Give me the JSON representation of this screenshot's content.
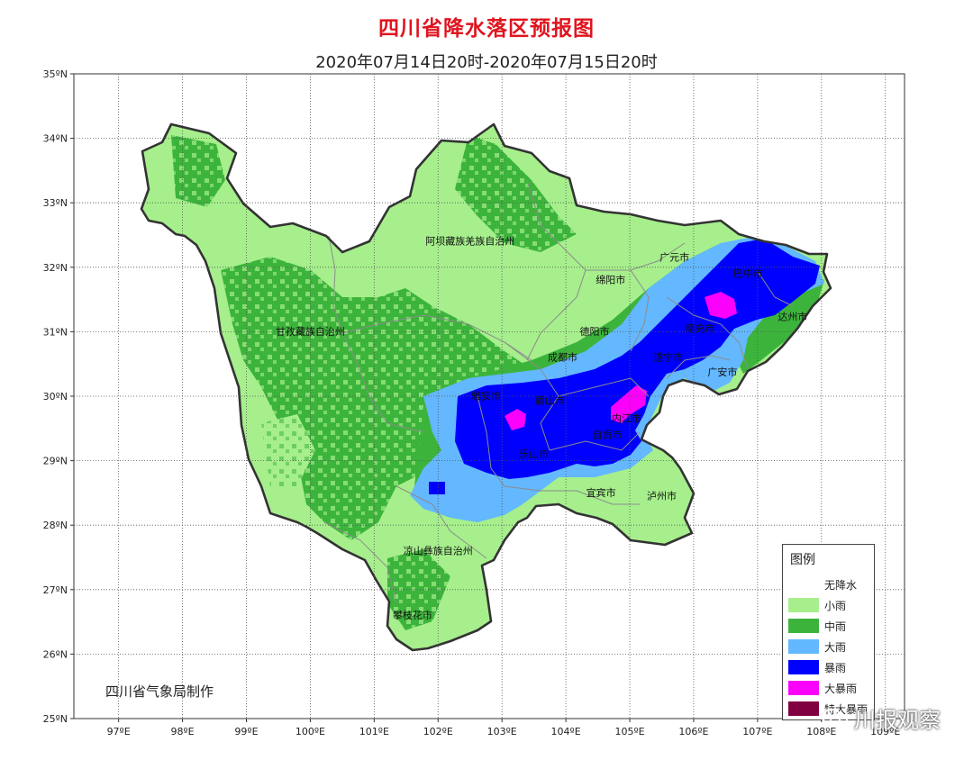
{
  "title": "四川省降水落区预报图",
  "subtitle": "2020年07月14日20时-2020年07月15日20时",
  "credit": "四川省气象局制作",
  "watermark": "川报观察",
  "axes": {
    "lat_ticks": [
      "35ºN",
      "34ºN",
      "33ºN",
      "32ºN",
      "31ºN",
      "30ºN",
      "29ºN",
      "28ºN",
      "27ºN",
      "26ºN",
      "25ºN"
    ],
    "lon_ticks": [
      "97ºE",
      "98ºE",
      "99ºE",
      "100ºE",
      "101ºE",
      "102ºE",
      "103ºE",
      "104ºE",
      "105ºE",
      "106ºE",
      "107ºE",
      "108ºE",
      "109ºE"
    ],
    "lat_range": [
      25,
      35
    ],
    "lon_range": [
      96.3,
      109.3
    ],
    "grid": true
  },
  "colors": {
    "light_rain": "#a6ef8c",
    "moderate_rain": "#3cb43c",
    "heavy_rain": "#63b8ff",
    "rainstorm": "#0000fe",
    "heavy_rainstorm": "#fb00fb",
    "extreme_rainstorm": "#800040",
    "border": "#333333"
  },
  "legend": {
    "title": "图例",
    "items": [
      {
        "label": "无降水",
        "color": "#ffffff"
      },
      {
        "label": "小雨",
        "color": "#a6ef8c"
      },
      {
        "label": "中雨",
        "color": "#3cb43c"
      },
      {
        "label": "大雨",
        "color": "#63b8ff"
      },
      {
        "label": "暴雨",
        "color": "#0000fe"
      },
      {
        "label": "大暴雨",
        "color": "#fb00fb"
      },
      {
        "label": "特大暴雨",
        "color": "#800040"
      }
    ]
  },
  "cities": [
    {
      "name": "阿坝藏族羌族自治州",
      "lon": 102.5,
      "lat": 32.35
    },
    {
      "name": "甘孜藏族自治州",
      "lon": 100.0,
      "lat": 30.95
    },
    {
      "name": "绵阳市",
      "lon": 104.7,
      "lat": 31.75
    },
    {
      "name": "广元市",
      "lon": 105.7,
      "lat": 32.1
    },
    {
      "name": "德阳市",
      "lon": 104.45,
      "lat": 30.95
    },
    {
      "name": "成都市",
      "lon": 103.95,
      "lat": 30.55
    },
    {
      "name": "巴中市",
      "lon": 106.85,
      "lat": 31.85
    },
    {
      "name": "达州市",
      "lon": 107.55,
      "lat": 31.18
    },
    {
      "name": "南充市",
      "lon": 106.1,
      "lat": 31.0
    },
    {
      "name": "遂宁市",
      "lon": 105.6,
      "lat": 30.55
    },
    {
      "name": "广安市",
      "lon": 106.45,
      "lat": 30.32
    },
    {
      "name": "雅安市",
      "lon": 102.75,
      "lat": 29.95
    },
    {
      "name": "眉山市",
      "lon": 103.75,
      "lat": 29.88
    },
    {
      "name": "内江市",
      "lon": 104.95,
      "lat": 29.6
    },
    {
      "name": "自贡市",
      "lon": 104.65,
      "lat": 29.35
    },
    {
      "name": "乐山市",
      "lon": 103.5,
      "lat": 29.05
    },
    {
      "name": "宜宾市",
      "lon": 104.55,
      "lat": 28.45
    },
    {
      "name": "泸州市",
      "lon": 105.5,
      "lat": 28.4
    },
    {
      "name": "凉山彝族自治州",
      "lon": 102.0,
      "lat": 27.55
    },
    {
      "name": "攀枝花市",
      "lon": 101.6,
      "lat": 26.55
    }
  ]
}
